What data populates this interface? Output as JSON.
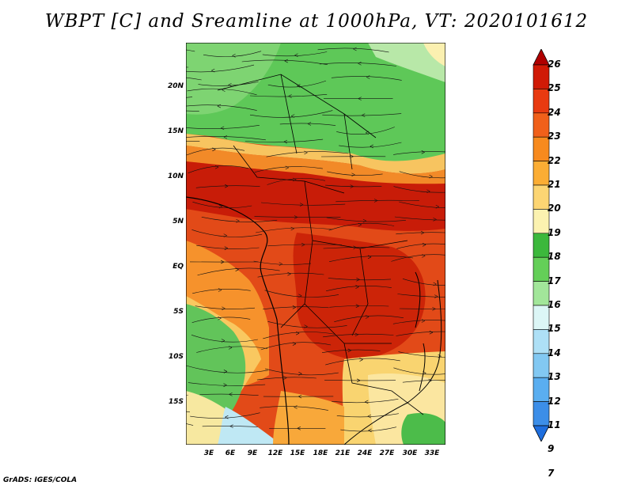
{
  "title": "WBPT [C] and Sreamline at 1000hPa, VT: 2020101612",
  "footer": "GrADS: IGES/COLA",
  "map": {
    "lat_labels": [
      "20N",
      "15N",
      "10N",
      "5N",
      "EQ",
      "5S",
      "10S",
      "15S"
    ],
    "lon_labels": [
      "3E",
      "6E",
      "9E",
      "12E",
      "15E",
      "18E",
      "21E",
      "24E",
      "27E",
      "30E",
      "33E"
    ]
  },
  "colorbar": {
    "levels": [
      "26",
      "25",
      "24",
      "23",
      "22",
      "21",
      "20",
      "19",
      "18",
      "17",
      "16",
      "15",
      "14",
      "13",
      "12",
      "11",
      "9",
      "7"
    ],
    "colors": [
      "#b00000",
      "#d01a06",
      "#e83a10",
      "#f0601a",
      "#f78a1e",
      "#fbad34",
      "#fcd573",
      "#fbf2b0",
      "#3cb83c",
      "#64cf58",
      "#a2e69a",
      "#dcf6f6",
      "#aee0f6",
      "#82c8f2",
      "#5aaef0",
      "#3c8ee8",
      "#1e6ede"
    ]
  }
}
